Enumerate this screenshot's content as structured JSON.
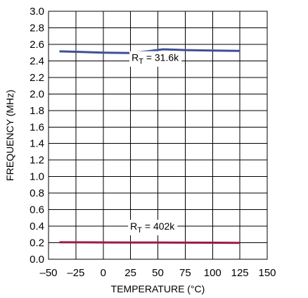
{
  "chart_data": {
    "type": "line",
    "xlabel": "TEMPERATURE (°C)",
    "ylabel": "FREQUENCY (MHz)",
    "xlim": [
      -50,
      150
    ],
    "ylim": [
      0,
      3.0
    ],
    "x_ticks": [
      -50,
      -25,
      0,
      25,
      50,
      75,
      100,
      125,
      150
    ],
    "x_tick_labels": [
      "–50",
      "–25",
      "0",
      "25",
      "50",
      "75",
      "100",
      "125",
      "150"
    ],
    "y_ticks": [
      0,
      0.2,
      0.4,
      0.6,
      0.8,
      1.0,
      1.2,
      1.4,
      1.6,
      1.8,
      2.0,
      2.2,
      2.4,
      2.6,
      2.8,
      3.0
    ],
    "y_tick_labels": [
      "0.0",
      "0.2",
      "0.4",
      "0.6",
      "0.8",
      "1.0",
      "1.2",
      "1.4",
      "1.6",
      "1.8",
      "2.0",
      "2.2",
      "2.4",
      "2.6",
      "2.8",
      "3.0"
    ],
    "grid": true,
    "series": [
      {
        "name_main": "R",
        "name_sub": "T",
        "name_rest": " = 31.6k",
        "color": "#3f4f96",
        "x": [
          -40,
          -25,
          0,
          25,
          40,
          55,
          75,
          100,
          125
        ],
        "y": [
          2.515,
          2.51,
          2.5,
          2.495,
          2.515,
          2.54,
          2.53,
          2.525,
          2.52
        ]
      },
      {
        "name_main": "R",
        "name_sub": "T",
        "name_rest": " = 402k",
        "color": "#9b1c45",
        "x": [
          -40,
          0,
          25,
          50,
          75,
          100,
          125
        ],
        "y": [
          0.205,
          0.204,
          0.203,
          0.202,
          0.201,
          0.2,
          0.199
        ]
      }
    ]
  }
}
